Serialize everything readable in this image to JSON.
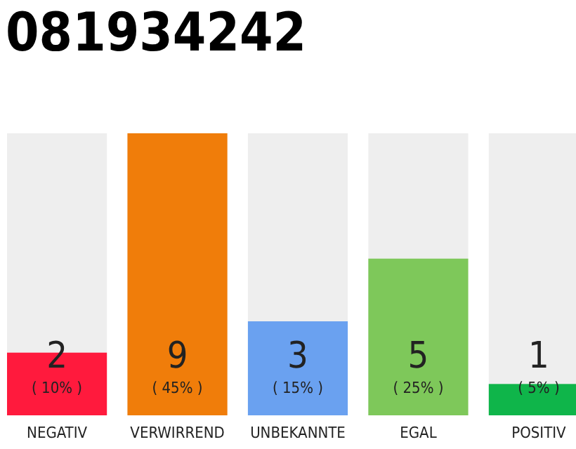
{
  "chart_data": {
    "type": "bar",
    "title": "081934242",
    "categories": [
      "NEGATIV",
      "VERWIRREND",
      "UNBEKANNTE",
      "EGAL",
      "POSITIV"
    ],
    "values": [
      10,
      45,
      15,
      25,
      5
    ],
    "colors": [
      "#ff1a3d",
      "#f07d0a",
      "#6aa1f0",
      "#7ec85a",
      "#0fb54a"
    ],
    "value_labels": [
      "2\n( 10% )",
      "9\n( 45% )",
      "3\n( 15% )",
      "5\n( 25% )",
      "1\n( 5% )"
    ]
  }
}
